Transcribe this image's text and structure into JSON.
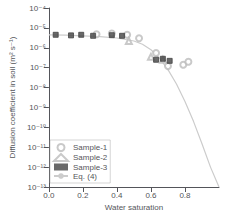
{
  "chart_data": {
    "type": "scatter",
    "xlabel": "Water saturation",
    "ylabel": "Diffusion coefficient in soil (m² s⁻¹)",
    "series": [
      {
        "name": "Sample-1",
        "type": "scatter",
        "marker": "open_circle",
        "color": "#bbbbbb",
        "x": [
          0.28,
          0.37,
          0.46,
          0.53,
          0.63,
          0.7,
          0.79,
          0.82
        ],
        "values": [
          4.8e-06,
          5.2e-06,
          4.5e-06,
          3e-06,
          5.5e-07,
          1.2e-07,
          1.4e-07,
          2e-07
        ]
      },
      {
        "name": "Sample-2",
        "type": "scatter",
        "marker": "open_triangle",
        "color": "#bbbbbb",
        "x": [
          0.47,
          0.6,
          0.67
        ],
        "values": [
          2.2e-06,
          3.5e-07,
          2.5e-07
        ]
      },
      {
        "name": "Sample-3",
        "type": "scatter",
        "marker": "square",
        "color": "#444444",
        "x": [
          0.04,
          0.13,
          0.19,
          0.26,
          0.37,
          0.43,
          0.63,
          0.67,
          0.71
        ],
        "values": [
          4.5e-06,
          4.2e-06,
          4.5e-06,
          4e-06,
          4.3e-06,
          4e-06,
          2.5e-07,
          2.8e-07,
          2.2e-07
        ]
      },
      {
        "name": "Eq. (4)",
        "type": "line",
        "line_style": "solid",
        "color": "#cccccc",
        "x": [
          0.0,
          0.1,
          0.2,
          0.3,
          0.4,
          0.5,
          0.55,
          0.6,
          0.65,
          0.7,
          0.75,
          0.8,
          0.85,
          0.9,
          0.95,
          1.0
        ],
        "values": [
          4.5e-06,
          4.3e-06,
          4e-06,
          3.6e-06,
          3.1e-06,
          2.2e-06,
          1.5e-06,
          8e-07,
          3e-07,
          8e-08,
          1.5e-08,
          2e-09,
          2e-10,
          1.5e-11,
          1e-12,
          1e-13
        ]
      }
    ],
    "xlim": [
      0,
      1.0
    ],
    "xticks": [
      {
        "value": 0,
        "label": "0.0"
      },
      0.2,
      0.4,
      0.6,
      0.8
    ],
    "ylim": [
      1e-13,
      0.0001
    ],
    "yticks": [
      {
        "value": 1e-13,
        "label": "10⁻¹³"
      },
      {
        "value": 1e-12,
        "label": "10⁻¹²"
      },
      {
        "value": 1e-11,
        "label": "10⁻¹¹"
      },
      {
        "value": 1e-10,
        "label": "10⁻¹⁰"
      },
      {
        "value": 1e-09,
        "label": "10⁻⁹"
      },
      {
        "value": 1e-08,
        "label": "10⁻⁸"
      },
      {
        "value": 1e-07,
        "label": "10⁻⁷"
      },
      {
        "value": 1e-06,
        "label": "10⁻⁶"
      },
      {
        "value": 1e-05,
        "label": "10⁻⁵"
      },
      {
        "value": 0.0001,
        "label": "10⁻⁴"
      }
    ],
    "log": "y",
    "grid": false,
    "legend": "lower left"
  }
}
